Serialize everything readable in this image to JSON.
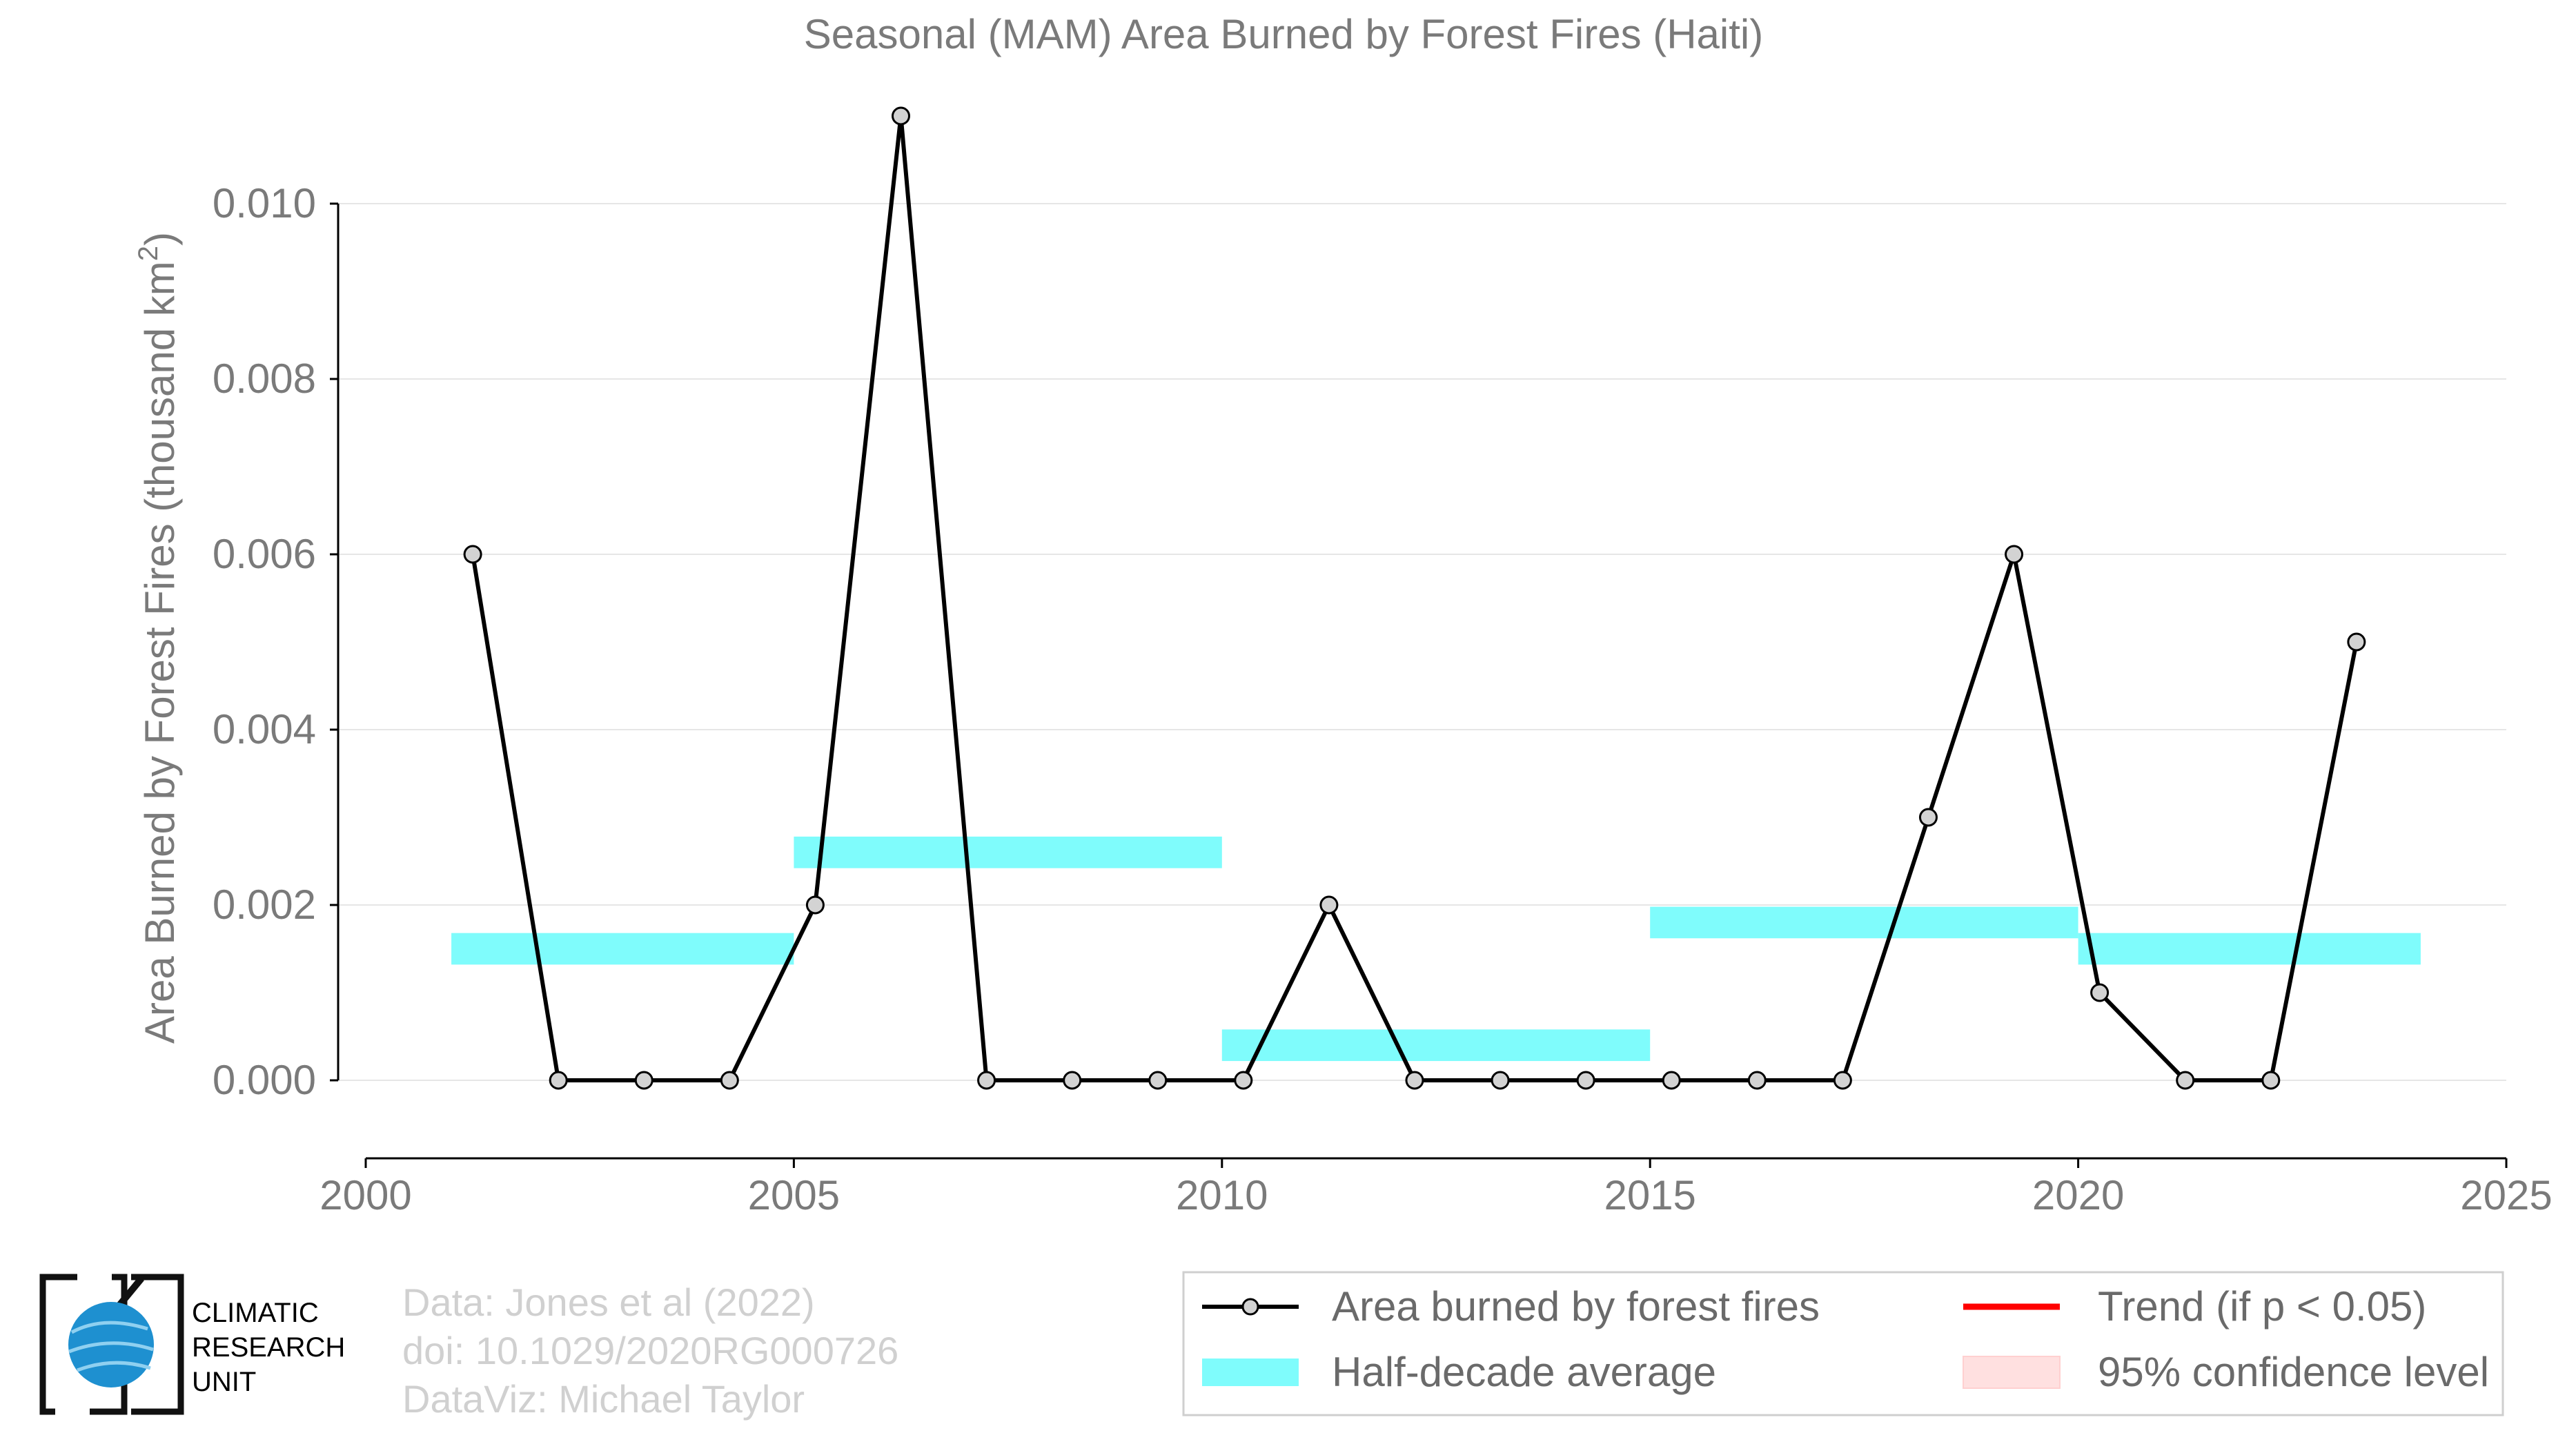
{
  "chart_data": {
    "type": "line",
    "title": "Seasonal (MAM) Area Burned by Forest Fires (Haiti)",
    "ylabel": "Area Burned by Forest Fires (thousand km²)",
    "ylabel_main": "Area Burned by Forest Fires (thousand km",
    "ylabel_sup": "2",
    "ylabel_end": ")",
    "xlabel": "",
    "xlim": [
      2000,
      2025
    ],
    "ylim": [
      -0.0009,
      0.0112
    ],
    "xticks": [
      2000,
      2005,
      2010,
      2015,
      2020,
      2025
    ],
    "yticks": [
      0.0,
      0.002,
      0.004,
      0.006,
      0.008,
      0.01
    ],
    "ytick_labels": [
      "0.000",
      "0.002",
      "0.004",
      "0.006",
      "0.008",
      "0.010"
    ],
    "grid": "horizontal",
    "series": [
      {
        "name": "Area burned by forest fires",
        "color": "#000000",
        "marker_fill": "#d3d3d3",
        "x": [
          2001.25,
          2002.25,
          2003.25,
          2004.25,
          2005.25,
          2006.25,
          2007.25,
          2008.25,
          2009.25,
          2010.25,
          2011.25,
          2012.25,
          2013.25,
          2014.25,
          2015.25,
          2016.25,
          2017.25,
          2018.25,
          2019.25,
          2020.25,
          2021.25,
          2022.25,
          2023.25
        ],
        "values": [
          0.006,
          0.0,
          0.0,
          0.0,
          0.002,
          0.011,
          0.0,
          0.0,
          0.0,
          0.0,
          0.002,
          0.0,
          0.0,
          0.0,
          0.0,
          0.0,
          0.0,
          0.003,
          0.006,
          0.001,
          0.0,
          0.0,
          0.005
        ]
      }
    ],
    "half_decade_average": {
      "name": "Half-decade average",
      "color": "#7ffcfc",
      "segments": [
        {
          "x0": 2001,
          "x1": 2005,
          "value": 0.0015
        },
        {
          "x0": 2005,
          "x1": 2010,
          "value": 0.0026
        },
        {
          "x0": 2010,
          "x1": 2015,
          "value": 0.0004
        },
        {
          "x0": 2015,
          "x1": 2020,
          "value": 0.0018
        },
        {
          "x0": 2020,
          "x1": 2024,
          "value": 0.0015
        }
      ]
    },
    "legend": {
      "placement": "bottom-right",
      "entries": [
        {
          "label": "Area burned by forest fires",
          "kind": "line-marker",
          "color": "#000000"
        },
        {
          "label": "Half-decade average",
          "kind": "band",
          "color": "#7ffcfc"
        },
        {
          "label": "Trend (if p < 0.05)",
          "kind": "line",
          "color": "#ff0000"
        },
        {
          "label": "95% confidence level",
          "kind": "band",
          "color": "#ffe0e0"
        }
      ]
    }
  },
  "branding": {
    "logo_lines": [
      "CLIMATIC",
      "RESEARCH",
      "UNIT"
    ]
  },
  "credits": [
    "Data: Jones et al (2022)",
    "doi: 10.1029/2020RG000726",
    "DataViz: Michael Taylor"
  ]
}
